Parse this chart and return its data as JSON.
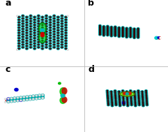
{
  "background_color": "#ffffff",
  "panel_labels": [
    "a",
    "b",
    "c",
    "d"
  ],
  "panel_label_color": "#000000",
  "panel_label_fontsize": 9,
  "panel_label_fontweight": "bold",
  "teal_color": "#00AAAA",
  "dark_teal": "#008888",
  "red_color": "#CC0000",
  "green_color": "#00CC00",
  "dark_green": "#006600",
  "blue_color": "#0000CC",
  "white_color": "#FFFFFF",
  "gray_color": "#888888",
  "light_gray": "#CCCCCC",
  "black_color": "#111111",
  "yellow_green": "#AAFF00",
  "figsize": [
    2.41,
    1.89
  ],
  "dpi": 100
}
